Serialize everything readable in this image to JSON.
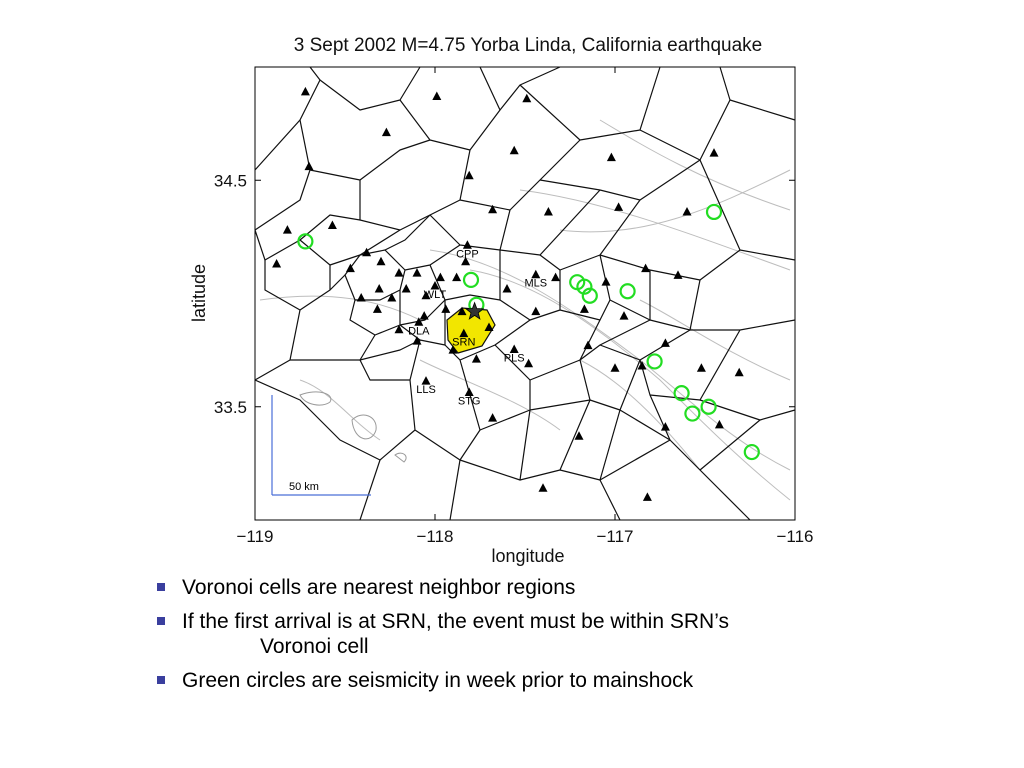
{
  "chart_data": {
    "type": "scatter",
    "title": "3 Sept 2002 M=4.75 Yorba Linda, California earthquake",
    "xlabel": "longitude",
    "ylabel": "latitude",
    "xlim": [
      -119,
      -116
    ],
    "ylim": [
      33.0,
      35.0
    ],
    "x_ticks": [
      -119,
      -118,
      -117,
      -116
    ],
    "x_tick_labels": [
      "−119",
      "−118",
      "−117",
      "−116"
    ],
    "y_ticks": [
      34.5,
      33.5
    ],
    "y_tick_labels": [
      "34.5",
      "33.5"
    ],
    "grid": false,
    "scale_bar_label": "50 km",
    "highlighted_cell_color": "#f2e600",
    "seismicity_color": "#22dd22",
    "epicenter": {
      "lon": -117.78,
      "lat": 33.92
    },
    "stations": [
      {
        "lon": -118.72,
        "lat": 34.89
      },
      {
        "lon": -117.99,
        "lat": 34.87
      },
      {
        "lon": -117.49,
        "lat": 34.86
      },
      {
        "lon": -118.27,
        "lat": 34.71
      },
      {
        "lon": -118.7,
        "lat": 34.56
      },
      {
        "lon": -117.56,
        "lat": 34.63
      },
      {
        "lon": -117.02,
        "lat": 34.6
      },
      {
        "lon": -116.45,
        "lat": 34.62
      },
      {
        "lon": -117.81,
        "lat": 34.52
      },
      {
        "lon": -118.82,
        "lat": 34.28
      },
      {
        "lon": -118.57,
        "lat": 34.3
      },
      {
        "lon": -117.68,
        "lat": 34.37
      },
      {
        "lon": -117.37,
        "lat": 34.36
      },
      {
        "lon": -116.98,
        "lat": 34.38
      },
      {
        "lon": -116.6,
        "lat": 34.36
      },
      {
        "lon": -118.88,
        "lat": 34.13
      },
      {
        "lon": -118.47,
        "lat": 34.11
      },
      {
        "lon": -118.38,
        "lat": 34.18
      },
      {
        "lon": -118.3,
        "lat": 34.14
      },
      {
        "lon": -118.2,
        "lat": 34.09
      },
      {
        "lon": -118.1,
        "lat": 34.09
      },
      {
        "lon": -117.83,
        "lat": 34.14
      },
      {
        "lon": -117.6,
        "lat": 34.02
      },
      {
        "lon": -117.33,
        "lat": 34.07
      },
      {
        "lon": -117.05,
        "lat": 34.05
      },
      {
        "lon": -116.83,
        "lat": 34.11
      },
      {
        "lon": -116.65,
        "lat": 34.08
      },
      {
        "lon": -118.41,
        "lat": 33.98
      },
      {
        "lon": -118.31,
        "lat": 34.02
      },
      {
        "lon": -118.24,
        "lat": 33.98
      },
      {
        "lon": -118.16,
        "lat": 34.02
      },
      {
        "lon": -118.05,
        "lat": 33.99
      },
      {
        "lon": -117.97,
        "lat": 34.07
      },
      {
        "lon": -117.88,
        "lat": 34.07
      },
      {
        "lon": -118.32,
        "lat": 33.93
      },
      {
        "lon": -118.06,
        "lat": 33.9
      },
      {
        "lon": -117.94,
        "lat": 33.93
      },
      {
        "lon": -117.85,
        "lat": 33.92
      },
      {
        "lon": -117.7,
        "lat": 33.85
      },
      {
        "lon": -117.44,
        "lat": 33.92
      },
      {
        "lon": -117.17,
        "lat": 33.93
      },
      {
        "lon": -116.95,
        "lat": 33.9
      },
      {
        "lon": -116.72,
        "lat": 33.78
      },
      {
        "lon": -118.2,
        "lat": 33.84
      },
      {
        "lon": -118.1,
        "lat": 33.79
      },
      {
        "lon": -117.9,
        "lat": 33.75
      },
      {
        "lon": -117.77,
        "lat": 33.71
      },
      {
        "lon": -117.48,
        "lat": 33.69
      },
      {
        "lon": -117.15,
        "lat": 33.77
      },
      {
        "lon": -117.0,
        "lat": 33.67
      },
      {
        "lon": -116.85,
        "lat": 33.68
      },
      {
        "lon": -116.52,
        "lat": 33.67
      },
      {
        "lon": -116.31,
        "lat": 33.65
      },
      {
        "lon": -117.68,
        "lat": 33.45
      },
      {
        "lon": -117.2,
        "lat": 33.37
      },
      {
        "lon": -116.72,
        "lat": 33.41
      },
      {
        "lon": -116.42,
        "lat": 33.42
      },
      {
        "lon": -117.4,
        "lat": 33.14
      },
      {
        "lon": -116.82,
        "lat": 33.1
      }
    ],
    "labeled_stations": [
      {
        "name": "CPP",
        "lon": -117.82,
        "lat": 34.16
      },
      {
        "name": "MLS",
        "lon": -117.44,
        "lat": 34.03
      },
      {
        "name": "WLT",
        "lon": -118.0,
        "lat": 33.98
      },
      {
        "name": "DLA",
        "lon": -118.09,
        "lat": 33.82
      },
      {
        "name": "SRN",
        "lon": -117.84,
        "lat": 33.77
      },
      {
        "name": "PLS",
        "lon": -117.56,
        "lat": 33.7
      },
      {
        "name": "LLS",
        "lon": -118.05,
        "lat": 33.56
      },
      {
        "name": "STG",
        "lon": -117.81,
        "lat": 33.51
      }
    ],
    "seismicity": [
      {
        "lon": -118.72,
        "lat": 34.23
      },
      {
        "lon": -117.8,
        "lat": 34.06
      },
      {
        "lon": -117.77,
        "lat": 33.95
      },
      {
        "lon": -117.21,
        "lat": 34.05
      },
      {
        "lon": -117.17,
        "lat": 34.03
      },
      {
        "lon": -117.14,
        "lat": 33.99
      },
      {
        "lon": -116.93,
        "lat": 34.01
      },
      {
        "lon": -116.45,
        "lat": 34.36
      },
      {
        "lon": -116.78,
        "lat": 33.7
      },
      {
        "lon": -116.63,
        "lat": 33.56
      },
      {
        "lon": -116.48,
        "lat": 33.5
      },
      {
        "lon": -116.57,
        "lat": 33.47
      },
      {
        "lon": -116.24,
        "lat": 33.3
      }
    ]
  },
  "bullets": [
    {
      "text": "Voronoi cells are nearest neighbor regions",
      "cont": ""
    },
    {
      "text": "If the first arrival is at SRN, the event must be within SRN’s",
      "cont": "Voronoi cell"
    },
    {
      "text": "Green circles are seismicity in week prior to mainshock",
      "cont": ""
    }
  ]
}
